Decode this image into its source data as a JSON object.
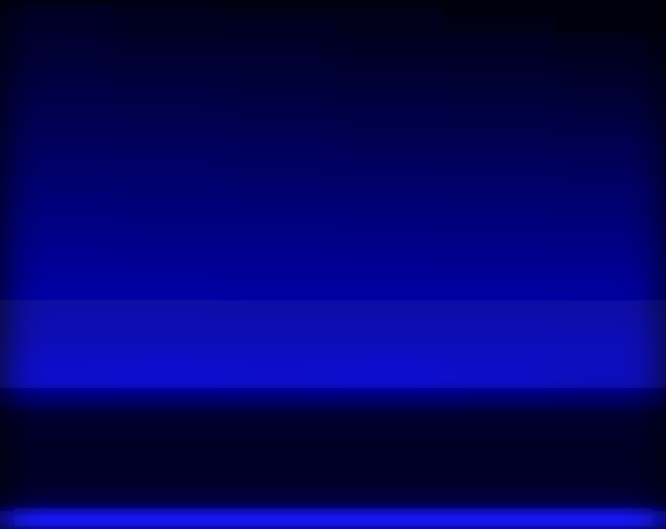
{
  "chart_data": {
    "type": "heatmap",
    "tick_labels": false,
    "cells": [
      [
        0.12,
        0.1,
        0.08,
        0.07,
        0.05,
        0.03
      ],
      [
        0.15,
        0.13,
        0.12,
        0.1,
        0.08,
        0.06
      ],
      [
        0.18,
        0.16,
        0.15,
        0.13,
        0.12,
        0.1
      ],
      [
        0.21,
        0.19,
        0.18,
        0.16,
        0.15,
        0.13
      ],
      [
        0.24,
        0.23,
        0.21,
        0.2,
        0.18,
        0.17
      ],
      [
        0.27,
        0.26,
        0.24,
        0.23,
        0.22,
        0.2
      ],
      [
        0.3,
        0.29,
        0.27,
        0.26,
        0.25,
        0.24
      ],
      [
        0.33,
        0.32,
        0.31,
        0.29,
        0.28,
        0.27
      ],
      [
        0.36,
        0.35,
        0.34,
        0.33,
        0.32,
        0.31
      ],
      [
        0.39,
        0.38,
        0.37,
        0.36,
        0.35,
        0.34
      ],
      [
        0.42,
        0.41,
        0.4,
        0.39,
        0.38,
        0.38
      ],
      [
        0.45,
        0.44,
        0.43,
        0.43,
        0.42,
        0.41
      ],
      [
        0.48,
        0.47,
        0.47,
        0.46,
        0.45,
        0.44
      ],
      [
        0.51,
        0.5,
        0.5,
        0.49,
        0.48,
        0.48
      ],
      [
        0.54,
        0.53,
        0.53,
        0.52,
        0.52,
        0.51
      ],
      [
        0.57,
        0.57,
        0.56,
        0.56,
        0.55,
        0.55
      ],
      [
        0.6,
        0.6,
        0.59,
        0.59,
        0.59,
        0.58
      ],
      [
        0.63,
        0.63,
        0.62,
        0.62,
        0.62,
        0.62
      ],
      [
        0.66,
        0.66,
        0.66,
        0.66,
        0.66,
        0.65
      ],
      [
        0.69,
        0.69,
        0.69,
        0.69,
        0.69,
        0.69
      ],
      [
        0.74,
        0.75,
        0.74,
        0.75,
        0.73,
        0.7
      ],
      [
        0.76,
        0.77,
        0.76,
        0.77,
        0.74,
        0.7
      ],
      [
        0.42,
        0.42,
        0.42,
        0.42,
        0.4,
        0.38
      ],
      [
        0.18,
        0.18,
        0.18,
        0.18,
        0.18,
        0.18
      ],
      [
        0.15,
        0.15,
        0.15,
        0.15,
        0.15,
        0.15
      ],
      [
        0.14,
        0.14,
        0.14,
        0.14,
        0.14,
        0.14
      ],
      [
        0.14,
        0.14,
        0.14,
        0.14,
        0.14,
        0.14
      ],
      [
        0.15,
        0.15,
        0.15,
        0.15,
        0.15,
        0.15
      ],
      [
        0.25,
        0.25,
        0.25,
        0.25,
        0.25,
        0.25
      ],
      [
        0.92,
        0.92,
        0.92,
        0.92,
        0.92,
        0.92
      ]
    ]
  }
}
